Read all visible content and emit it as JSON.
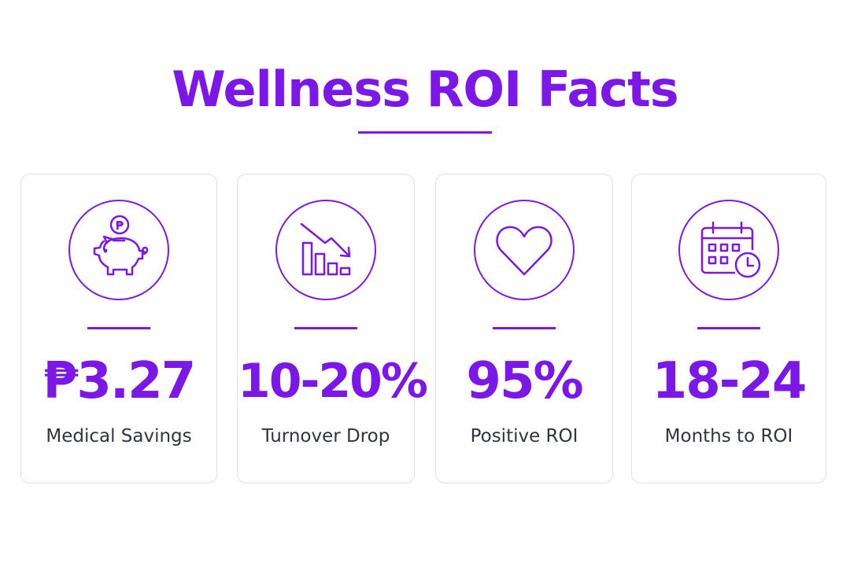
{
  "header": {
    "title": "Wellness ROI Facts"
  },
  "accent_color": "#7b18e8",
  "label_color": "#2e3440",
  "cards": [
    {
      "icon": "piggy-bank-icon",
      "value": "₱3.27",
      "label": "Medical Savings"
    },
    {
      "icon": "declining-chart-icon",
      "value": "10-20%",
      "label": "Turnover Drop"
    },
    {
      "icon": "heart-icon",
      "value": "95%",
      "label": "Positive ROI"
    },
    {
      "icon": "calendar-clock-icon",
      "value": "18-24",
      "label": "Months to ROI"
    }
  ]
}
